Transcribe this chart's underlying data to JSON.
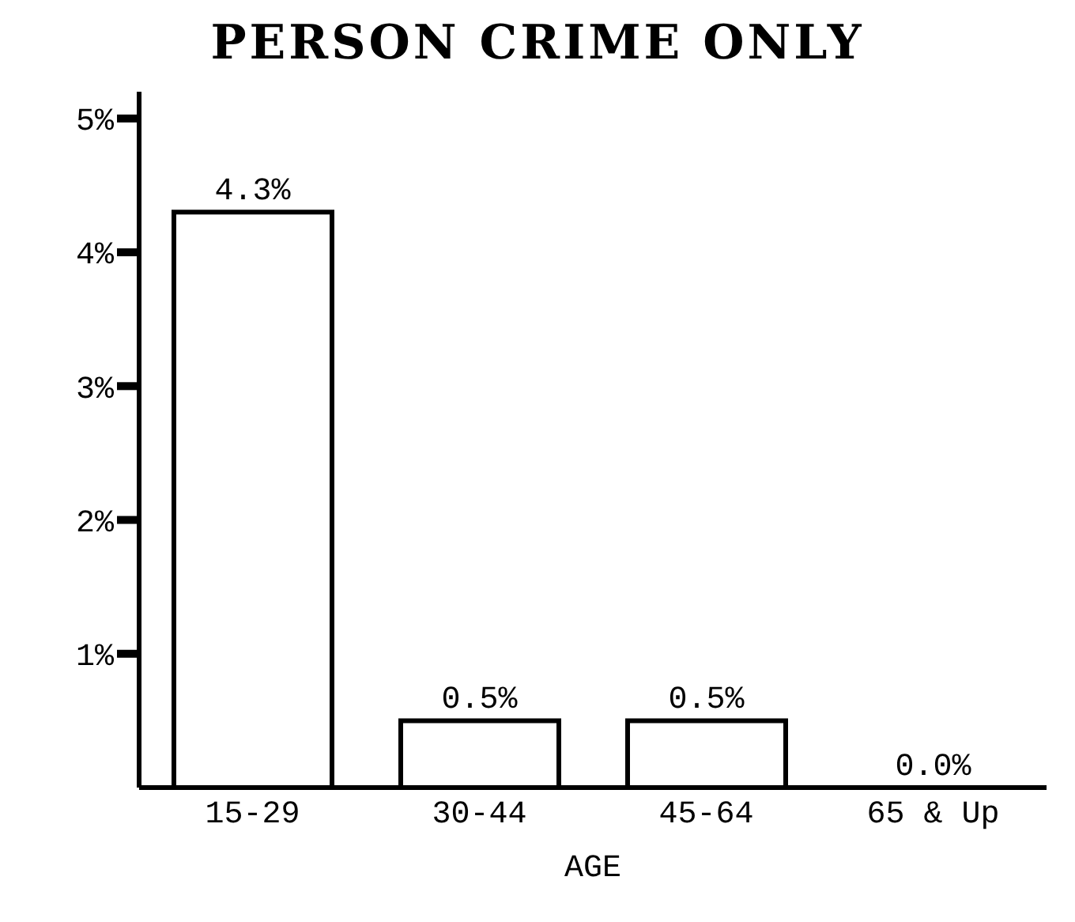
{
  "chart_data": {
    "type": "bar",
    "title": "PERSON CRIME ONLY",
    "xlabel": "AGE",
    "categories": [
      "15-29",
      "30-44",
      "45-64",
      "65 & Up"
    ],
    "values": [
      4.3,
      0.5,
      0.5,
      0.0
    ],
    "value_labels": [
      "4.3%",
      "0.5%",
      "0.5%",
      "0.0%"
    ],
    "color": "#ffffff",
    "ylim": [
      0,
      5.2
    ],
    "yticks": [
      {
        "value": 1,
        "label": "1%"
      },
      {
        "value": 2,
        "label": "2%"
      },
      {
        "value": 3,
        "label": "3%"
      },
      {
        "value": 4,
        "label": "4%"
      },
      {
        "value": 5,
        "label": "5%"
      }
    ],
    "grid": false
  }
}
